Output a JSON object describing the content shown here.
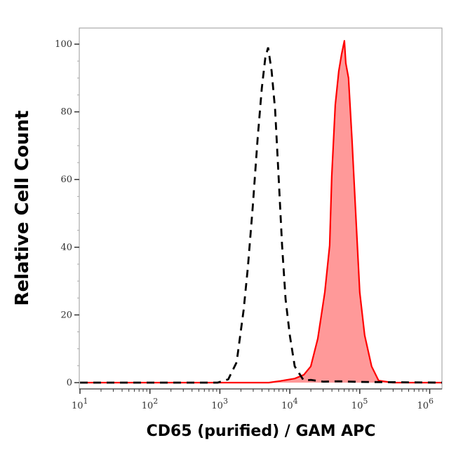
{
  "chart_data": {
    "type": "area",
    "title": "",
    "xlabel": "CD65 (purified) / GAM APC",
    "ylabel": "Relative Cell Count",
    "x_scale": "log",
    "xlim": [
      10,
      1500000
    ],
    "ylim": [
      -2,
      105
    ],
    "x_ticks": [
      {
        "base": "10",
        "exp": "1",
        "value": 10
      },
      {
        "base": "10",
        "exp": "2",
        "value": 100
      },
      {
        "base": "10",
        "exp": "3",
        "value": 1000
      },
      {
        "base": "10",
        "exp": "4",
        "value": 10000
      },
      {
        "base": "10",
        "exp": "5",
        "value": 100000
      },
      {
        "base": "10",
        "exp": "6",
        "value": 1000000
      }
    ],
    "y_ticks": [
      "0",
      "20",
      "40",
      "60",
      "80",
      "100"
    ],
    "grid": false,
    "legend": "none",
    "series": [
      {
        "style": "dashed-line",
        "color": "#000000",
        "points": [
          [
            10,
            0
          ],
          [
            900,
            0
          ],
          [
            933,
            0
          ],
          [
            1318,
            1
          ],
          [
            1738,
            6
          ],
          [
            2188,
            21.5
          ],
          [
            2512,
            34
          ],
          [
            2951,
            52
          ],
          [
            3467,
            72
          ],
          [
            3981,
            87
          ],
          [
            4467,
            96
          ],
          [
            4898,
            99
          ],
          [
            5495,
            92
          ],
          [
            6166,
            80.5
          ],
          [
            6918,
            61
          ],
          [
            7762,
            40.5
          ],
          [
            8710,
            24.6
          ],
          [
            10000,
            14
          ],
          [
            11749,
            4.8
          ],
          [
            15849,
            0.6
          ],
          [
            20000,
            0.8
          ],
          [
            30000,
            0.3
          ],
          [
            50000,
            0.4
          ],
          [
            100000,
            0.2
          ],
          [
            1500000,
            0
          ]
        ]
      },
      {
        "style": "filled-area",
        "color": "#ff0000",
        "fill": "#ff9999",
        "points": [
          [
            10,
            0
          ],
          [
            5012,
            0
          ],
          [
            7413,
            0.5
          ],
          [
            11749,
            1.2
          ],
          [
            15849,
            2.3
          ],
          [
            19953,
            4.8
          ],
          [
            25119,
            13
          ],
          [
            31623,
            26.7
          ],
          [
            37154,
            40.5
          ],
          [
            39811,
            61
          ],
          [
            44668,
            82
          ],
          [
            50119,
            92
          ],
          [
            54954,
            97
          ],
          [
            60256,
            101
          ],
          [
            63096,
            94.4
          ],
          [
            69183,
            90
          ],
          [
            77625,
            71.6
          ],
          [
            87096,
            51
          ],
          [
            100000,
            26.7
          ],
          [
            117490,
            14
          ],
          [
            147911,
            4.8
          ],
          [
            186209,
            0.6
          ],
          [
            295121,
            0
          ],
          [
            1500000,
            0
          ]
        ]
      }
    ]
  }
}
